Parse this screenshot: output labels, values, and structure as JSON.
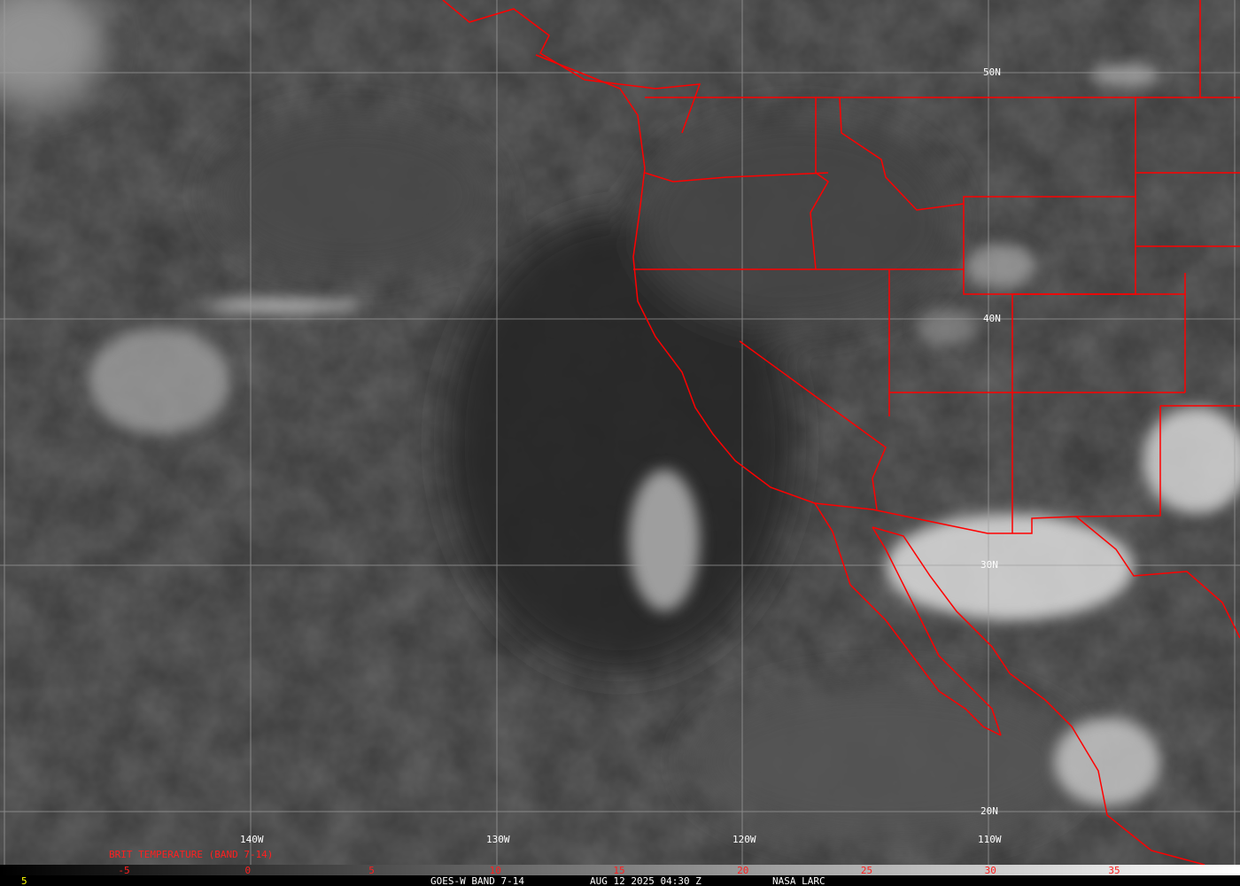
{
  "map": {
    "satellite": "GOES-W",
    "product_title": "BRIT TEMPERATURE (BAND 7-14)",
    "colors": {
      "border": "#ff0000",
      "grid": "#a0a0a0",
      "background": "#3a3a3a",
      "footer_text": "#ffffff",
      "scale_labels": "#ff2020",
      "corner_label": "#ffff00"
    },
    "longitude_labels": [
      "140W",
      "130W",
      "120W",
      "110W"
    ],
    "latitude_labels": [
      "50N",
      "40N",
      "30N",
      "20N"
    ],
    "color_scale": {
      "ticks": [
        "-5",
        "0",
        "5",
        "10",
        "15",
        "20",
        "25",
        "30",
        "35"
      ],
      "min_color": "#000000",
      "max_color": "#ffffff"
    },
    "corner_label": "5",
    "footer": {
      "band": "GOES-W BAND 7-14",
      "datetime": "AUG 12 2025 04:30 Z",
      "source": "NASA LARC"
    }
  }
}
